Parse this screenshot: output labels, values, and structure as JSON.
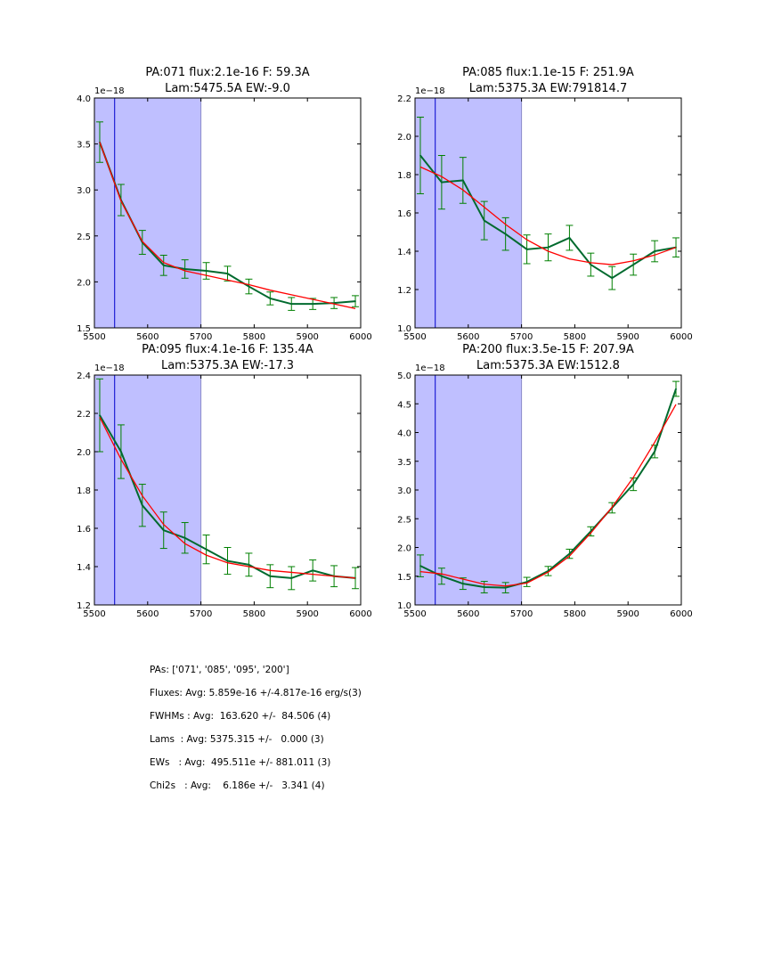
{
  "chart_data": [
    {
      "type": "line",
      "title_line1": "PA:071 flux:2.1e-16 F: 59.3A",
      "title_line2": "Lam:5475.5A EW:-9.0",
      "y_offset_label": "1e−18",
      "xlim": [
        5500,
        6000
      ],
      "ylim": [
        1.5,
        4.0
      ],
      "xticks": [
        5500,
        5600,
        5700,
        5800,
        5900,
        6000
      ],
      "yticks": [
        "1.5",
        "2.0",
        "2.5",
        "3.0",
        "3.5",
        "4.0"
      ],
      "shade_range": [
        5500,
        5700
      ],
      "vline_x": 5538,
      "x": [
        5510,
        5550,
        5590,
        5630,
        5670,
        5710,
        5750,
        5790,
        5830,
        5870,
        5910,
        5950,
        5990
      ],
      "series": [
        {
          "name": "data",
          "color": "#006a2e",
          "values": [
            3.52,
            2.89,
            2.43,
            2.18,
            2.14,
            2.12,
            2.09,
            1.95,
            1.82,
            1.76,
            1.76,
            1.77,
            1.79
          ],
          "errors": [
            0.22,
            0.17,
            0.13,
            0.11,
            0.1,
            0.09,
            0.08,
            0.08,
            0.07,
            0.07,
            0.06,
            0.06,
            0.06
          ]
        },
        {
          "name": "fit",
          "color": "#ff0000",
          "values": [
            3.52,
            2.88,
            2.44,
            2.21,
            2.12,
            2.07,
            2.02,
            1.97,
            1.91,
            1.86,
            1.81,
            1.76,
            1.71
          ]
        }
      ]
    },
    {
      "type": "line",
      "title_line1": "PA:085 flux:1.1e-15 F: 251.9A",
      "title_line2": "Lam:5375.3A EW:791814.7",
      "y_offset_label": "1e−18",
      "xlim": [
        5500,
        6000
      ],
      "ylim": [
        1.0,
        2.2
      ],
      "xticks": [
        5500,
        5600,
        5700,
        5800,
        5900,
        6000
      ],
      "yticks": [
        "1.0",
        "1.2",
        "1.4",
        "1.6",
        "1.8",
        "2.0",
        "2.2"
      ],
      "shade_range": [
        5500,
        5700
      ],
      "vline_x": 5538,
      "x": [
        5510,
        5550,
        5590,
        5630,
        5670,
        5710,
        5750,
        5790,
        5830,
        5870,
        5910,
        5950,
        5990
      ],
      "series": [
        {
          "name": "data",
          "color": "#006a2e",
          "values": [
            1.9,
            1.76,
            1.77,
            1.56,
            1.49,
            1.41,
            1.42,
            1.47,
            1.33,
            1.26,
            1.33,
            1.4,
            1.42
          ],
          "errors": [
            0.2,
            0.14,
            0.12,
            0.1,
            0.085,
            0.075,
            0.07,
            0.065,
            0.06,
            0.06,
            0.055,
            0.055,
            0.05
          ]
        },
        {
          "name": "fit",
          "color": "#ff0000",
          "values": [
            1.84,
            1.79,
            1.72,
            1.63,
            1.54,
            1.46,
            1.4,
            1.36,
            1.34,
            1.33,
            1.35,
            1.38,
            1.42
          ]
        }
      ]
    },
    {
      "type": "line",
      "title_line1": "PA:095 flux:4.1e-16 F: 135.4A",
      "title_line2": "Lam:5375.3A EW:-17.3",
      "y_offset_label": "1e−18",
      "xlim": [
        5500,
        6000
      ],
      "ylim": [
        1.2,
        2.4
      ],
      "xticks": [
        5500,
        5600,
        5700,
        5800,
        5900,
        6000
      ],
      "yticks": [
        "1.2",
        "1.4",
        "1.6",
        "1.8",
        "2.0",
        "2.2",
        "2.4"
      ],
      "shade_range": [
        5500,
        5700
      ],
      "vline_x": 5538,
      "x": [
        5510,
        5550,
        5590,
        5630,
        5670,
        5710,
        5750,
        5790,
        5830,
        5870,
        5910,
        5950,
        5990
      ],
      "series": [
        {
          "name": "data",
          "color": "#006a2e",
          "values": [
            2.19,
            2.0,
            1.72,
            1.59,
            1.55,
            1.49,
            1.43,
            1.41,
            1.35,
            1.34,
            1.38,
            1.35,
            1.34
          ],
          "errors": [
            0.19,
            0.14,
            0.11,
            0.095,
            0.08,
            0.075,
            0.07,
            0.06,
            0.06,
            0.06,
            0.055,
            0.055,
            0.055
          ]
        },
        {
          "name": "fit",
          "color": "#ff0000",
          "values": [
            2.18,
            1.96,
            1.77,
            1.62,
            1.52,
            1.46,
            1.42,
            1.4,
            1.38,
            1.37,
            1.36,
            1.35,
            1.34
          ]
        }
      ]
    },
    {
      "type": "line",
      "title_line1": "PA:200 flux:3.5e-15 F: 207.9A",
      "title_line2": "Lam:5375.3A EW:1512.8",
      "y_offset_label": "1e−18",
      "xlim": [
        5500,
        6000
      ],
      "ylim": [
        1.0,
        5.0
      ],
      "xticks": [
        5500,
        5600,
        5700,
        5800,
        5900,
        6000
      ],
      "yticks": [
        "1.0",
        "1.5",
        "2.0",
        "2.5",
        "3.0",
        "3.5",
        "4.0",
        "4.5",
        "5.0"
      ],
      "shade_range": [
        5500,
        5700
      ],
      "vline_x": 5538,
      "x": [
        5510,
        5550,
        5590,
        5630,
        5670,
        5710,
        5750,
        5790,
        5830,
        5870,
        5910,
        5950,
        5990
      ],
      "series": [
        {
          "name": "data",
          "color": "#006a2e",
          "values": [
            1.68,
            1.5,
            1.37,
            1.31,
            1.3,
            1.4,
            1.59,
            1.89,
            2.28,
            2.69,
            3.1,
            3.67,
            4.76
          ],
          "errors": [
            0.19,
            0.14,
            0.1,
            0.1,
            0.09,
            0.08,
            0.08,
            0.08,
            0.08,
            0.09,
            0.11,
            0.11,
            0.13
          ]
        },
        {
          "name": "fit",
          "color": "#ff0000",
          "values": [
            1.58,
            1.54,
            1.45,
            1.36,
            1.33,
            1.38,
            1.57,
            1.85,
            2.25,
            2.7,
            3.22,
            3.83,
            4.49
          ]
        }
      ]
    }
  ],
  "colors": {
    "shade": "#bfbfff",
    "shade_edge": "#8c8cc8",
    "vline": "#0000cc",
    "data": "#006a2e",
    "errorbar": "#008000",
    "fit": "#ff0000"
  },
  "summary": {
    "pas": "PAs: ['071', '085', '095', '200']",
    "fluxes": "Fluxes: Avg: 5.859e-16 +/-4.817e-16 erg/s(3)",
    "fwhms": "FWHMs : Avg:  163.620 +/-  84.506 (4)",
    "lams": "Lams  : Avg: 5375.315 +/-   0.000 (3)",
    "ews": "EWs   : Avg:  495.511e +/- 881.011 (3)",
    "chi2s": "Chi2s   : Avg:    6.186e +/-   3.341 (4)"
  }
}
